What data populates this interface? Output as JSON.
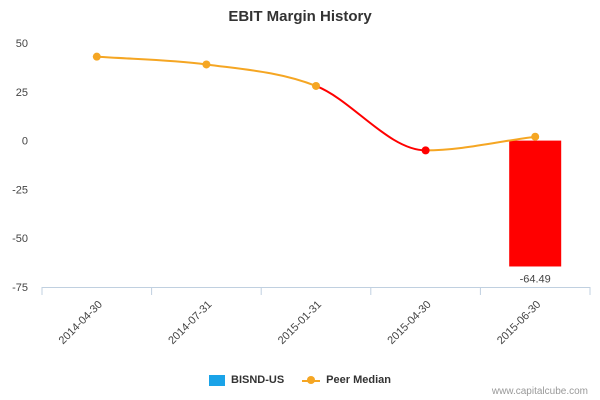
{
  "chart_data": {
    "type": "bar",
    "title": "EBIT Margin History",
    "categories": [
      "2014-04-30",
      "2014-07-31",
      "2015-01-31",
      "2015-04-30",
      "2015-06-30"
    ],
    "ylim": [
      -75,
      50
    ],
    "yticks": [
      50,
      25,
      0,
      -25,
      -50,
      -75
    ],
    "ytick_labels": [
      "50",
      "25",
      "0",
      "-25",
      "-50",
      "-75"
    ],
    "xlabel": "",
    "ylabel": "",
    "grid": false,
    "legend_position": "bottom-center",
    "series": [
      {
        "name": "BISND-US",
        "type": "bar",
        "color": "#1aa3e8",
        "values": [
          null,
          null,
          null,
          null,
          -64.49
        ],
        "data_labels": [
          null,
          null,
          null,
          null,
          "-64.49"
        ],
        "highlight_color": "#ff0000"
      },
      {
        "name": "Peer Median",
        "type": "line",
        "color": "#f5a623",
        "values": [
          43,
          39,
          28,
          -5,
          2
        ],
        "highlight_color": "#ff0000",
        "highlight_range": [
          2,
          3
        ]
      }
    ]
  },
  "footer": {
    "credit": "www.capitalcube.com"
  }
}
